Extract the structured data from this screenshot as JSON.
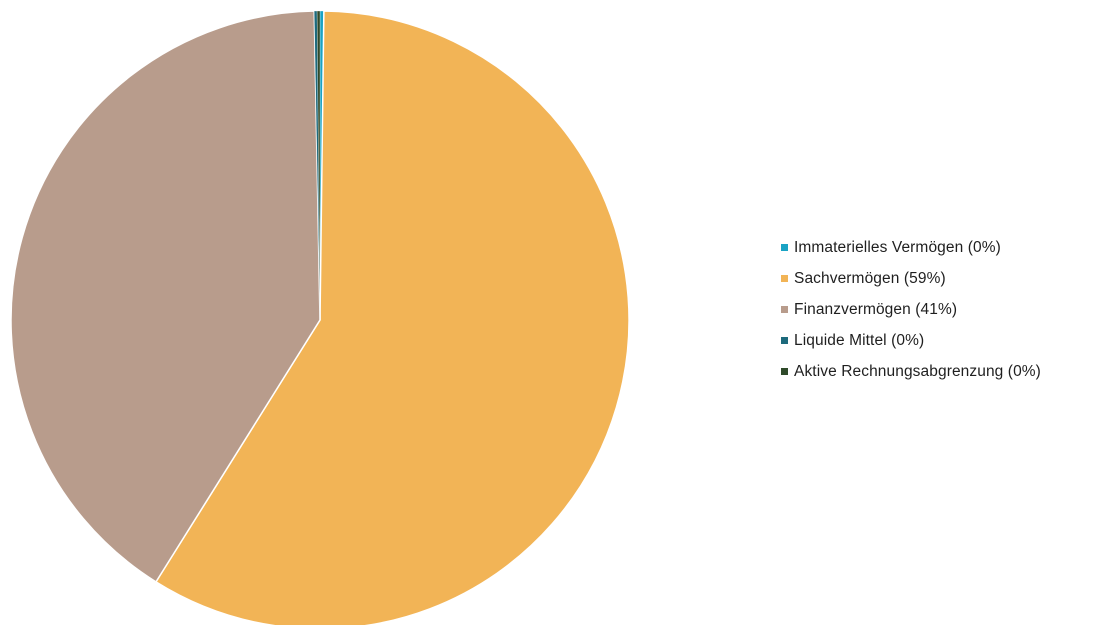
{
  "chart_data": {
    "type": "pie",
    "title": "",
    "slices": [
      {
        "label": "Immaterielles Vermögen (0%)",
        "value": 0.2,
        "color": "#1aa3c4"
      },
      {
        "label": "Sachvermögen (59%)",
        "value": 59,
        "color": "#f2b456"
      },
      {
        "label": "Finanzvermögen (41%)",
        "value": 41,
        "color": "#b89c8c"
      },
      {
        "label": "Liquide Mittel (0%)",
        "value": 0.15,
        "color": "#1d6a7c"
      },
      {
        "label": "Aktive Rechnungsabgrenzung (0%)",
        "value": 0.15,
        "color": "#2f4a2a"
      }
    ],
    "start": "top",
    "direction": "clockwise",
    "legend_position": "right"
  }
}
